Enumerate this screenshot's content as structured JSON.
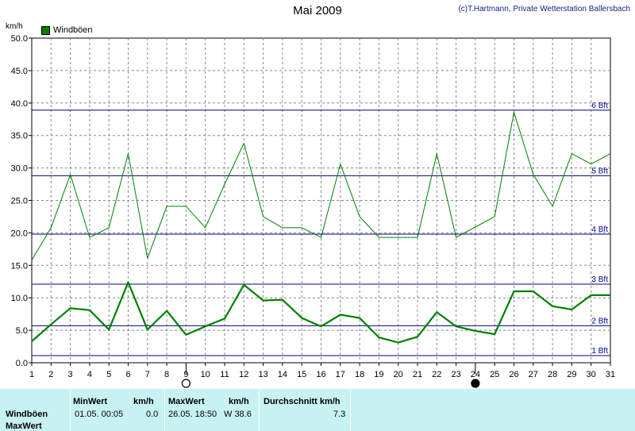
{
  "header": {
    "title": "Mai 2009",
    "copyright": "(c)T.Hartmann, Private Wetterstation Ballersbach"
  },
  "chart_data": {
    "type": "line",
    "title": "Mai 2009",
    "ylabel": "km/h",
    "xlim": [
      1,
      31
    ],
    "ylim": [
      0,
      50
    ],
    "grid": true,
    "legend": "top-left",
    "x_ticks": [
      1,
      2,
      3,
      4,
      5,
      6,
      7,
      8,
      9,
      10,
      11,
      12,
      13,
      14,
      15,
      16,
      17,
      18,
      19,
      20,
      21,
      22,
      23,
      24,
      25,
      26,
      27,
      28,
      29,
      30,
      31
    ],
    "y_ticks": [
      "0.0",
      "5.0",
      "10.0",
      "15.0",
      "20.0",
      "25.0",
      "30.0",
      "35.0",
      "40.0",
      "45.0",
      "50.0"
    ],
    "series": [
      {
        "name": "Windböen",
        "color": "#008000",
        "x": [
          1,
          2,
          3,
          4,
          5,
          6,
          7,
          8,
          9,
          10,
          11,
          12,
          13,
          14,
          15,
          16,
          17,
          18,
          19,
          20,
          21,
          22,
          23,
          24,
          25,
          26,
          27,
          28,
          29,
          30,
          31
        ],
        "values": [
          15.8,
          20.8,
          29.0,
          19.3,
          20.8,
          32.2,
          16.1,
          24.1,
          24.1,
          20.8,
          27.5,
          33.8,
          22.5,
          20.8,
          20.8,
          19.3,
          30.6,
          22.5,
          19.3,
          19.3,
          19.3,
          32.2,
          19.3,
          20.9,
          22.5,
          38.6,
          29.0,
          24.1,
          32.2,
          30.6,
          32.2
        ]
      },
      {
        "color": "#008000",
        "x": [
          1,
          2,
          3,
          4,
          5,
          6,
          7,
          8,
          9,
          10,
          11,
          12,
          13,
          14,
          15,
          16,
          17,
          18,
          19,
          20,
          21,
          22,
          23,
          24,
          25,
          26,
          27,
          28,
          29,
          30,
          31
        ],
        "values": [
          3.3,
          5.9,
          8.4,
          8.1,
          5.1,
          12.4,
          5.1,
          8.0,
          4.3,
          5.6,
          6.8,
          12.0,
          9.6,
          9.7,
          6.9,
          5.6,
          7.4,
          6.9,
          3.9,
          3.1,
          4.0,
          7.8,
          5.6,
          4.9,
          4.4,
          11.0,
          11.0,
          8.7,
          8.2,
          10.4,
          10.4
        ]
      }
    ],
    "reference_lines": [
      {
        "label": "6 Bft",
        "value": 38.9
      },
      {
        "label": "5 Bft",
        "value": 28.8
      },
      {
        "label": "4 Bft",
        "value": 19.8
      },
      {
        "label": "3 Bft",
        "value": 12.1
      },
      {
        "label": "2 Bft",
        "value": 5.7
      },
      {
        "label": "1 Bft",
        "value": 1.1
      }
    ],
    "moon_markers": [
      {
        "day": 9,
        "phase": "full"
      },
      {
        "day": 24,
        "phase": "new"
      }
    ]
  },
  "table": {
    "row_labels": [
      "Windböen",
      "MaxWert"
    ],
    "col_min": "MinWert",
    "col_min_unit": "km/h",
    "col_max": "MaxWert",
    "col_max_unit": "km/h",
    "col_avg": "Durchschnitt km/h",
    "min_time": "01.05.  00:05",
    "min_value": "0.0",
    "max_time": "26.05.  18:50",
    "max_value": "W 38.6",
    "avg_value": "7.3"
  }
}
